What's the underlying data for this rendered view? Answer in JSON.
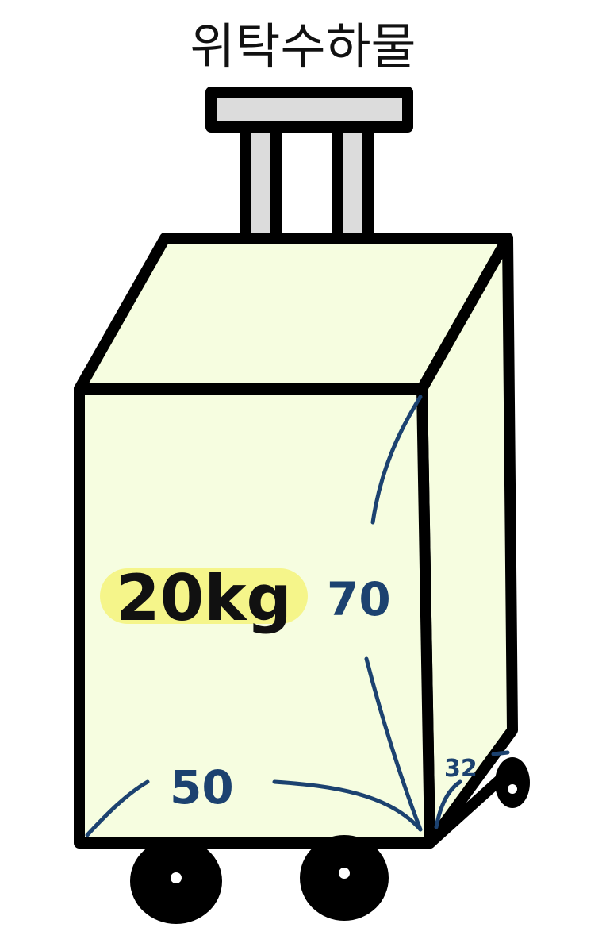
{
  "title": "위탁수하물",
  "weight_label": "20kg",
  "dimensions": {
    "height": "70",
    "width": "50",
    "depth": "32"
  },
  "colors": {
    "body_fill": "#f6fde0",
    "outline": "#000000",
    "handle_fill": "#dcdcdc",
    "highlight": "#f5f58a",
    "dimension_ink": "#1c4270"
  }
}
